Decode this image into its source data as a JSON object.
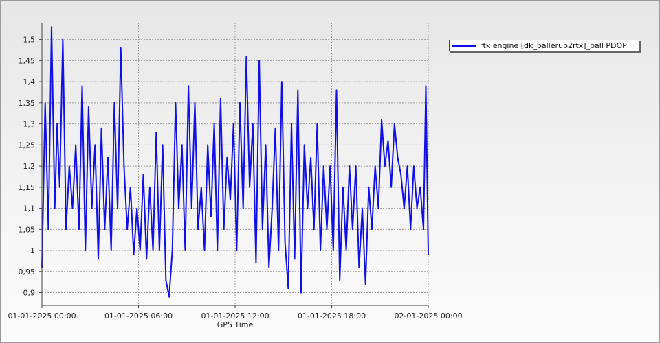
{
  "chart_data": {
    "type": "line",
    "xlabel": "GPS Time",
    "ylabel": "",
    "x_range": [
      "01-01-2025 00:00",
      "02-01-2025 00:00"
    ],
    "x_ticks": [
      "01-01-2025 00:00",
      "01-01-2025 06:00",
      "01-01-2025 12:00",
      "01-01-2025 18:00",
      "02-01-2025 00:00"
    ],
    "ylim": [
      0.87,
      1.54
    ],
    "y_ticks": [
      "0,9",
      "0,95",
      "1",
      "1,05",
      "1,1",
      "1,15",
      "1,2",
      "1,25",
      "1,3",
      "1,35",
      "1,4",
      "1,45",
      "1,5"
    ],
    "y_tick_values": [
      0.9,
      0.95,
      1.0,
      1.05,
      1.1,
      1.15,
      1.2,
      1.25,
      1.3,
      1.35,
      1.4,
      1.45,
      1.5
    ],
    "grid": true,
    "legend": "top-right",
    "series": [
      {
        "name": "rtk engine [dk_ballerup2rtx]_ball PDOP",
        "color": "#1010e6",
        "x_hours": [
          0,
          0.2,
          0.4,
          0.6,
          0.8,
          0.95,
          1.1,
          1.3,
          1.5,
          1.7,
          1.9,
          2.1,
          2.3,
          2.5,
          2.7,
          2.9,
          3.1,
          3.3,
          3.5,
          3.7,
          3.9,
          4.1,
          4.3,
          4.5,
          4.7,
          4.9,
          5.1,
          5.3,
          5.5,
          5.7,
          5.9,
          6.1,
          6.3,
          6.5,
          6.7,
          6.9,
          7.1,
          7.3,
          7.5,
          7.7,
          7.9,
          8.1,
          8.3,
          8.5,
          8.7,
          8.9,
          9.1,
          9.3,
          9.5,
          9.7,
          9.9,
          10.1,
          10.3,
          10.5,
          10.7,
          10.9,
          11.1,
          11.3,
          11.5,
          11.7,
          11.9,
          12.1,
          12.3,
          12.5,
          12.7,
          12.9,
          13.1,
          13.3,
          13.5,
          13.7,
          13.9,
          14.1,
          14.3,
          14.5,
          14.7,
          14.9,
          15.1,
          15.3,
          15.5,
          15.7,
          15.9,
          16.1,
          16.3,
          16.5,
          16.7,
          16.9,
          17.1,
          17.3,
          17.5,
          17.7,
          17.9,
          18.1,
          18.3,
          18.5,
          18.7,
          18.9,
          19.1,
          19.3,
          19.5,
          19.7,
          19.9,
          20.1,
          20.3,
          20.5,
          20.7,
          20.9,
          21.1,
          21.3,
          21.5,
          21.7,
          21.9,
          22.1,
          22.3,
          22.5,
          22.7,
          22.9,
          23.1,
          23.3,
          23.5,
          23.7,
          23.85,
          24
        ],
        "values": [
          0.96,
          1.35,
          1.05,
          1.53,
          1.1,
          1.3,
          1.15,
          1.5,
          1.05,
          1.2,
          1.1,
          1.25,
          1.05,
          1.39,
          1.0,
          1.34,
          1.1,
          1.25,
          0.98,
          1.29,
          1.05,
          1.22,
          1.0,
          1.35,
          1.1,
          1.48,
          1.2,
          1.05,
          1.15,
          0.99,
          1.1,
          1.0,
          1.18,
          0.98,
          1.15,
          1.0,
          1.28,
          1.0,
          1.25,
          0.93,
          0.89,
          1.0,
          1.35,
          1.1,
          1.25,
          1.0,
          1.39,
          1.1,
          1.35,
          1.05,
          1.15,
          1.0,
          1.25,
          1.08,
          1.3,
          1.0,
          1.36,
          1.05,
          1.22,
          1.12,
          1.3,
          1.0,
          1.35,
          1.1,
          1.46,
          1.15,
          1.3,
          0.97,
          1.45,
          1.05,
          1.25,
          0.96,
          1.1,
          1.29,
          1.0,
          1.4,
          1.02,
          0.91,
          1.3,
          0.98,
          1.38,
          0.9,
          1.25,
          1.1,
          1.22,
          1.05,
          1.3,
          1.0,
          1.2,
          1.05,
          1.2,
          1.0,
          1.38,
          0.93,
          1.15,
          1.0,
          1.2,
          1.05,
          1.2,
          0.96,
          1.1,
          0.92,
          1.15,
          1.05,
          1.2,
          1.1,
          1.31,
          1.2,
          1.26,
          1.15,
          1.3,
          1.22,
          1.18,
          1.1,
          1.2,
          1.05,
          1.2,
          1.1,
          1.15,
          1.05,
          1.39,
          0.99
        ]
      }
    ]
  }
}
